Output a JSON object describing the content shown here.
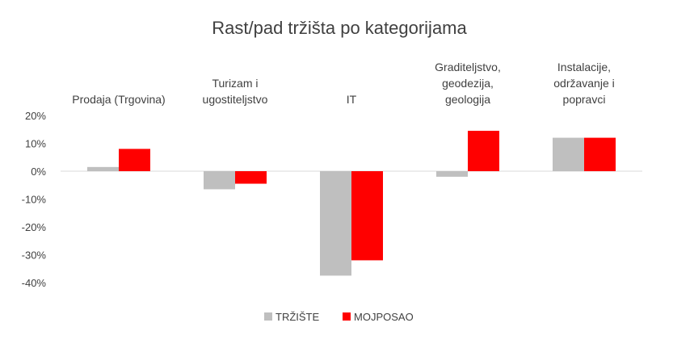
{
  "chart_data": {
    "type": "bar",
    "title": "Rast/pad tržišta po kategorijama",
    "categories": [
      [
        "Prodaja (Trgovina)"
      ],
      [
        "Turizam i",
        "ugostiteljstvo"
      ],
      [
        "IT"
      ],
      [
        "Graditeljstvo,",
        "geodezija,",
        "geologija"
      ],
      [
        "Instalacije,",
        "održavanje i",
        "popravci"
      ]
    ],
    "series": [
      {
        "name": "TRŽIŠTE",
        "color": "#bfbfbf",
        "values": [
          1.5,
          -6.5,
          -37.5,
          -2.0,
          12.0
        ]
      },
      {
        "name": "MOJPOSAO",
        "color": "#ff0000",
        "values": [
          8.0,
          -4.5,
          -32.0,
          14.5,
          12.0
        ]
      }
    ],
    "ylim": [
      -40,
      20
    ],
    "yticks": [
      "20%",
      "10%",
      "0%",
      "-10%",
      "-20%",
      "-30%",
      "-40%"
    ],
    "ytick_values": [
      20,
      10,
      0,
      -10,
      -20,
      -30,
      -40
    ],
    "xlabel": "",
    "ylabel": "",
    "grid": false,
    "legend_position": "bottom"
  }
}
